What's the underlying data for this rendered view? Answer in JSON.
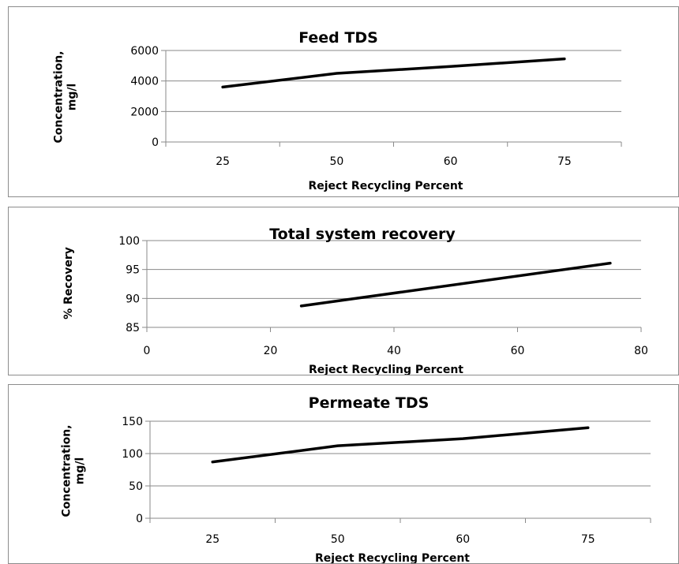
{
  "chart_data": [
    {
      "type": "line",
      "title": "Feed TDS",
      "xlabel": "Reject Recycling Percent",
      "ylabel_lines": [
        "Concentration,",
        "mg/l"
      ],
      "categories": [
        "25",
        "50",
        "60",
        "75"
      ],
      "series": [
        {
          "values": [
            3600,
            4500,
            4950,
            5450
          ]
        }
      ],
      "ylim": [
        0,
        6000
      ],
      "yticks": [
        0,
        2000,
        4000,
        6000
      ],
      "grid": true,
      "legend": "none",
      "line_color": "#000000"
    },
    {
      "type": "scatter",
      "title": "Total system recovery",
      "xlabel": "Reject Recycling Percent",
      "ylabel_lines": [
        "% Recovery"
      ],
      "series": [
        {
          "x": [
            25,
            75
          ],
          "y": [
            88.7,
            96.1
          ]
        }
      ],
      "xlim": [
        0,
        80
      ],
      "xticks": [
        0,
        20,
        40,
        60,
        80
      ],
      "ylim": [
        85,
        100
      ],
      "yticks": [
        85,
        90,
        95,
        100
      ],
      "grid": true,
      "legend": "none",
      "line_color": "#000000"
    },
    {
      "type": "line",
      "title": "Permeate TDS",
      "xlabel": "Reject Recycling Percent",
      "ylabel_lines": [
        "Concentration,",
        "mg/l"
      ],
      "categories": [
        "25",
        "50",
        "60",
        "75"
      ],
      "series": [
        {
          "values": [
            87,
            112,
            123,
            140
          ]
        }
      ],
      "ylim": [
        0,
        150
      ],
      "yticks": [
        0,
        50,
        100,
        150
      ],
      "grid": true,
      "legend": "none",
      "line_color": "#000000"
    }
  ]
}
